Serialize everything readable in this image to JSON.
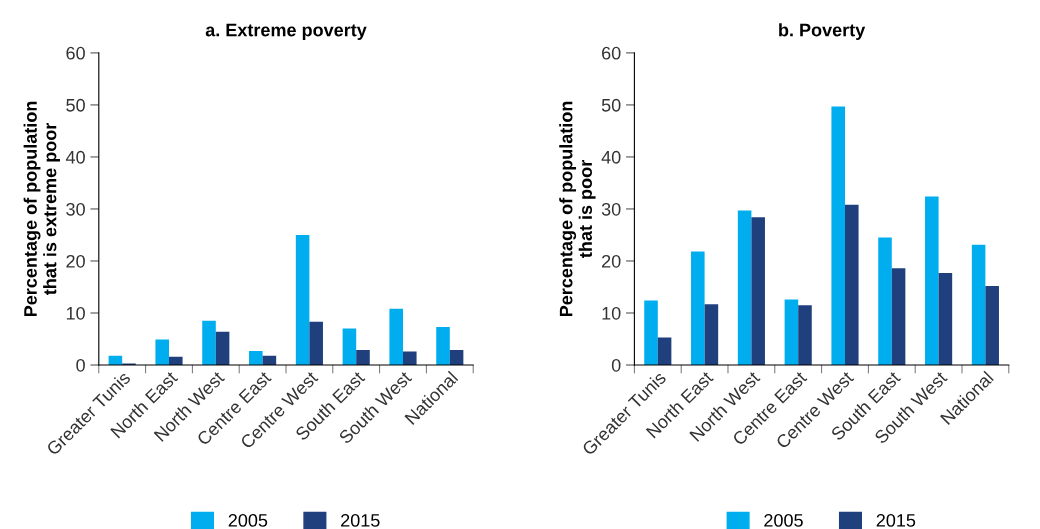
{
  "chart_data": [
    {
      "type": "bar",
      "title": "a. Extreme poverty",
      "ylabel": "Percentage of population\nthat is extreme poor",
      "categories": [
        "Greater Tunis",
        "North East",
        "North West",
        "Centre East",
        "Centre West",
        "South East",
        "South West",
        "National"
      ],
      "series": [
        {
          "name": "2005",
          "color": "#00aeef",
          "values": [
            1.8,
            4.9,
            8.5,
            2.7,
            25.0,
            7.0,
            10.8,
            7.3
          ]
        },
        {
          "name": "2015",
          "color": "#1f407d",
          "values": [
            0.3,
            1.6,
            6.4,
            1.8,
            8.3,
            2.9,
            2.6,
            2.9
          ]
        }
      ],
      "ylim": [
        0,
        60
      ],
      "yticks": [
        0,
        10,
        20,
        30,
        40,
        50,
        60
      ],
      "grid": false,
      "legend": "bottom"
    },
    {
      "type": "bar",
      "title": "b. Poverty",
      "ylabel": "Percentage of population\nthat is poor",
      "categories": [
        "Greater Tunis",
        "North East",
        "North West",
        "Centre East",
        "Centre West",
        "South East",
        "South West",
        "National"
      ],
      "series": [
        {
          "name": "2005",
          "color": "#00aeef",
          "values": [
            12.4,
            21.8,
            29.7,
            12.6,
            49.7,
            24.5,
            32.4,
            23.1
          ]
        },
        {
          "name": "2015",
          "color": "#1f407d",
          "values": [
            5.3,
            11.7,
            28.4,
            11.5,
            30.8,
            18.6,
            17.7,
            15.2
          ]
        }
      ],
      "ylim": [
        0,
        60
      ],
      "yticks": [
        0,
        10,
        20,
        30,
        40,
        50,
        60
      ],
      "grid": false,
      "legend": "bottom"
    }
  ]
}
